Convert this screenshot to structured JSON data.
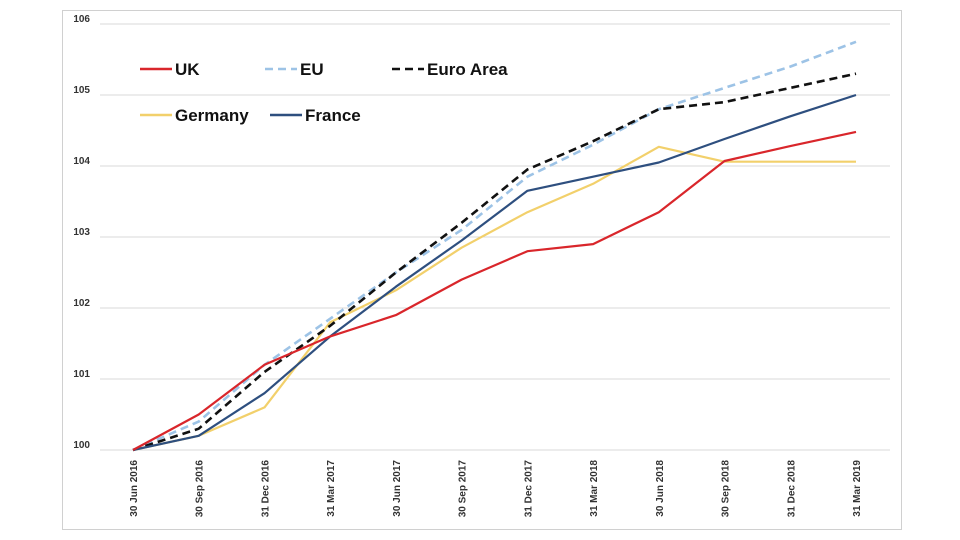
{
  "chart_data": {
    "type": "line",
    "title": "",
    "xlabel": "",
    "ylabel": "",
    "ylim": [
      100,
      106
    ],
    "yticks": [
      100,
      101,
      102,
      103,
      104,
      105,
      106
    ],
    "grid": true,
    "legend_position": "top-left",
    "categories": [
      "30 Jun 2016",
      "30 Sep 2016",
      "31 Dec 2016",
      "31 Mar 2017",
      "30 Jun 2017",
      "30 Sep 2017",
      "31 Dec 2017",
      "31 Mar 2018",
      "30 Jun 2018",
      "30 Sep 2018",
      "31 Dec 2018",
      "31 Mar 2019"
    ],
    "series": [
      {
        "name": "UK",
        "color": "#d9262b",
        "dash": "solid",
        "values": [
          100.0,
          100.5,
          101.2,
          101.6,
          101.9,
          102.4,
          102.8,
          102.9,
          103.35,
          104.07,
          104.28,
          104.48
        ]
      },
      {
        "name": "EU",
        "color": "#9dc3e6",
        "dash": "dashed",
        "values": [
          100.0,
          100.4,
          101.2,
          101.85,
          102.5,
          103.1,
          103.85,
          104.3,
          104.8,
          105.1,
          105.4,
          105.75
        ]
      },
      {
        "name": "Euro Area",
        "color": "#111111",
        "dash": "dashed",
        "values": [
          100.0,
          100.3,
          101.1,
          101.75,
          102.5,
          103.2,
          103.95,
          104.35,
          104.8,
          104.9,
          105.1,
          105.3
        ]
      },
      {
        "name": "Germany",
        "color": "#f2d06b",
        "dash": "solid",
        "values": [
          100.0,
          100.2,
          100.6,
          101.8,
          102.25,
          102.85,
          103.35,
          103.75,
          104.27,
          104.06,
          104.06,
          104.06
        ]
      },
      {
        "name": "France",
        "color": "#2e4f7f",
        "dash": "solid",
        "values": [
          100.0,
          100.2,
          100.8,
          101.6,
          102.3,
          102.95,
          103.65,
          103.85,
          104.05,
          104.38,
          104.7,
          105.0
        ]
      }
    ]
  }
}
